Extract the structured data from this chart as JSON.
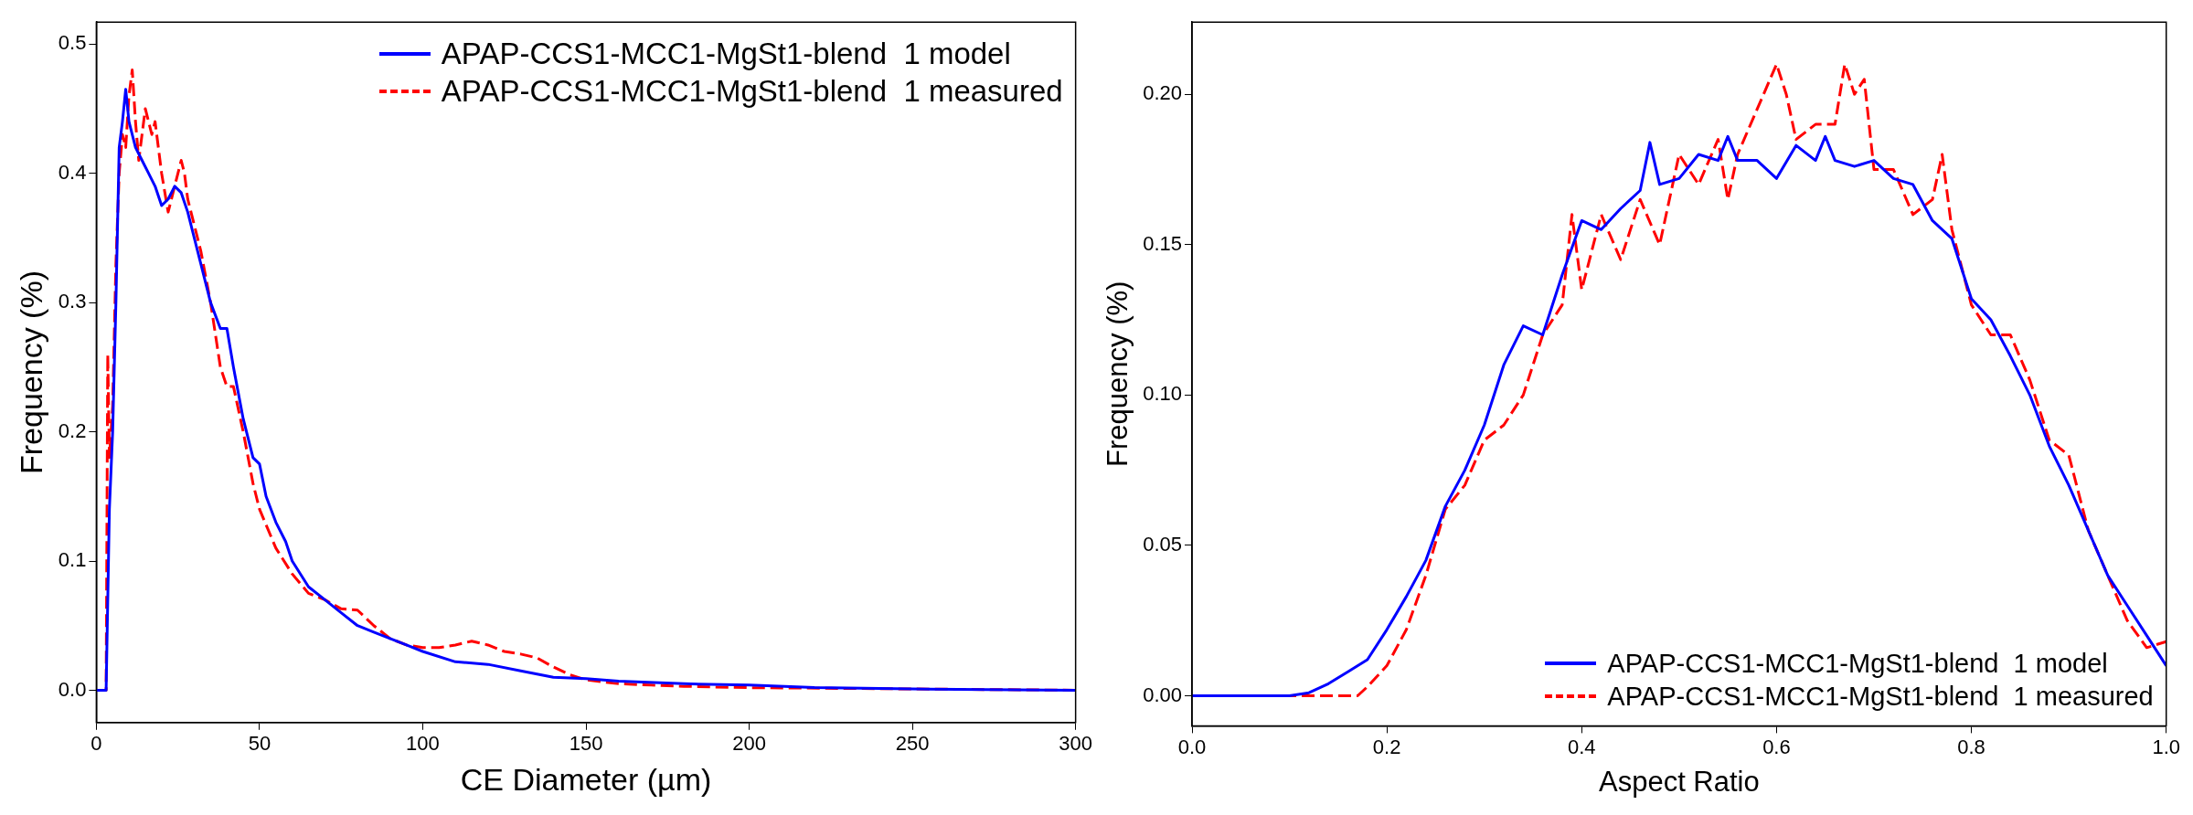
{
  "chart_data": [
    {
      "type": "line",
      "xlabel": "CE Diameter (µm)",
      "ylabel": "Frequency (%)",
      "xlim": [
        0,
        300
      ],
      "xticks": [
        0,
        50,
        100,
        150,
        200,
        250,
        300
      ],
      "ylim": [
        -0.025,
        0.517
      ],
      "yticks": [
        {
          "value": 0,
          "label": "0.0"
        },
        0.1,
        0.2,
        0.3,
        0.4,
        0.5
      ],
      "grid": false,
      "legend": "top right",
      "marker": "none",
      "series": [
        {
          "name": "APAP-CCS1-MCC1-MgSt1-blend  1 model",
          "color": "#0000ff",
          "line_style": "solid",
          "x": [
            0,
            3,
            4,
            5,
            6,
            7,
            8,
            9,
            10,
            12,
            14,
            16,
            18,
            20,
            22,
            24,
            26,
            28,
            30,
            32,
            35,
            38,
            40,
            42,
            45,
            48,
            50,
            52,
            55,
            58,
            60,
            65,
            70,
            75,
            80,
            85,
            90,
            95,
            100,
            110,
            120,
            130,
            140,
            150,
            160,
            180,
            200,
            220,
            250,
            300
          ],
          "values": [
            0,
            0,
            0.14,
            0.2,
            0.3,
            0.42,
            0.44,
            0.465,
            0.44,
            0.42,
            0.41,
            0.4,
            0.39,
            0.375,
            0.38,
            0.39,
            0.385,
            0.37,
            0.35,
            0.33,
            0.3,
            0.28,
            0.28,
            0.25,
            0.21,
            0.18,
            0.175,
            0.15,
            0.13,
            0.115,
            0.1,
            0.08,
            0.07,
            0.06,
            0.05,
            0.045,
            0.04,
            0.035,
            0.03,
            0.022,
            0.02,
            0.015,
            0.01,
            0.009,
            0.007,
            0.005,
            0.004,
            0.002,
            0.001,
            0
          ]
        },
        {
          "name": "APAP-CCS1-MCC1-MgSt1-blend  1 measured",
          "color": "#ff0000",
          "line_style": "dashed",
          "x": [
            0,
            3,
            3.5,
            4,
            5,
            6,
            7,
            8,
            9,
            10,
            11,
            12,
            13,
            15,
            17,
            18,
            20,
            22,
            24,
            26,
            27,
            28,
            30,
            32,
            35,
            38,
            40,
            42,
            45,
            48,
            50,
            55,
            60,
            65,
            70,
            75,
            80,
            85,
            90,
            95,
            100,
            105,
            110,
            115,
            120,
            125,
            130,
            135,
            140,
            145,
            150,
            160,
            170,
            180,
            200,
            300
          ],
          "values": [
            0,
            0,
            0.26,
            0.18,
            0.22,
            0.33,
            0.4,
            0.43,
            0.42,
            0.46,
            0.48,
            0.44,
            0.41,
            0.45,
            0.43,
            0.44,
            0.4,
            0.37,
            0.39,
            0.41,
            0.4,
            0.38,
            0.36,
            0.34,
            0.3,
            0.25,
            0.235,
            0.235,
            0.2,
            0.16,
            0.14,
            0.11,
            0.09,
            0.075,
            0.07,
            0.063,
            0.062,
            0.05,
            0.04,
            0.035,
            0.033,
            0.033,
            0.035,
            0.038,
            0.035,
            0.03,
            0.028,
            0.025,
            0.018,
            0.012,
            0.008,
            0.005,
            0.004,
            0.003,
            0.002,
            0
          ]
        }
      ]
    },
    {
      "type": "line",
      "xlabel": "Aspect Ratio",
      "ylabel": "Frequency (%)",
      "xlim": [
        0,
        1
      ],
      "xticks": [
        {
          "value": 0,
          "label": "0.0"
        },
        0.2,
        0.4,
        0.6,
        0.8,
        {
          "value": 1,
          "label": "1.0"
        }
      ],
      "ylim": [
        -0.01,
        0.224
      ],
      "yticks": [
        {
          "value": 0,
          "label": "0.00"
        },
        0.05,
        {
          "value": 0.1,
          "label": "0.10"
        },
        0.15,
        {
          "value": 0.2,
          "label": "0.20"
        }
      ],
      "grid": false,
      "legend": "bottom right",
      "marker": "none",
      "series": [
        {
          "name": "APAP-CCS1-MCC1-MgSt1-blend  1 model",
          "color": "#0000ff",
          "line_style": "solid",
          "x": [
            0,
            0.1,
            0.12,
            0.14,
            0.16,
            0.18,
            0.2,
            0.22,
            0.24,
            0.26,
            0.28,
            0.3,
            0.32,
            0.34,
            0.36,
            0.38,
            0.4,
            0.42,
            0.44,
            0.46,
            0.47,
            0.48,
            0.5,
            0.52,
            0.54,
            0.55,
            0.56,
            0.58,
            0.6,
            0.62,
            0.64,
            0.65,
            0.66,
            0.68,
            0.7,
            0.72,
            0.74,
            0.76,
            0.78,
            0.8,
            0.82,
            0.84,
            0.86,
            0.88,
            0.9,
            0.92,
            0.94,
            0.96,
            0.98,
            1.0
          ],
          "values": [
            0,
            0,
            0.001,
            0.004,
            0.008,
            0.012,
            0.022,
            0.033,
            0.045,
            0.063,
            0.075,
            0.09,
            0.11,
            0.123,
            0.12,
            0.14,
            0.158,
            0.155,
            0.162,
            0.168,
            0.184,
            0.17,
            0.172,
            0.18,
            0.178,
            0.186,
            0.178,
            0.178,
            0.172,
            0.183,
            0.178,
            0.186,
            0.178,
            0.176,
            0.178,
            0.172,
            0.17,
            0.158,
            0.152,
            0.132,
            0.125,
            0.113,
            0.1,
            0.083,
            0.07,
            0.055,
            0.04,
            0.03,
            0.02,
            0.01
          ]
        },
        {
          "name": "APAP-CCS1-MCC1-MgSt1-blend  1 measured",
          "color": "#ff0000",
          "line_style": "dashed",
          "x": [
            0,
            0.17,
            0.18,
            0.2,
            0.22,
            0.24,
            0.26,
            0.28,
            0.3,
            0.32,
            0.34,
            0.36,
            0.38,
            0.39,
            0.4,
            0.42,
            0.44,
            0.46,
            0.48,
            0.5,
            0.52,
            0.54,
            0.55,
            0.56,
            0.58,
            0.6,
            0.61,
            0.62,
            0.64,
            0.66,
            0.67,
            0.68,
            0.69,
            0.7,
            0.72,
            0.74,
            0.76,
            0.77,
            0.78,
            0.8,
            0.82,
            0.84,
            0.86,
            0.88,
            0.9,
            0.92,
            0.94,
            0.96,
            0.98,
            1.0
          ],
          "values": [
            0,
            0,
            0.003,
            0.01,
            0.022,
            0.04,
            0.062,
            0.07,
            0.085,
            0.09,
            0.1,
            0.12,
            0.13,
            0.16,
            0.135,
            0.16,
            0.145,
            0.165,
            0.15,
            0.18,
            0.17,
            0.185,
            0.165,
            0.18,
            0.195,
            0.21,
            0.2,
            0.185,
            0.19,
            0.19,
            0.21,
            0.2,
            0.205,
            0.175,
            0.175,
            0.16,
            0.165,
            0.18,
            0.155,
            0.13,
            0.12,
            0.12,
            0.105,
            0.085,
            0.08,
            0.055,
            0.04,
            0.025,
            0.016,
            0.018
          ]
        }
      ]
    }
  ]
}
